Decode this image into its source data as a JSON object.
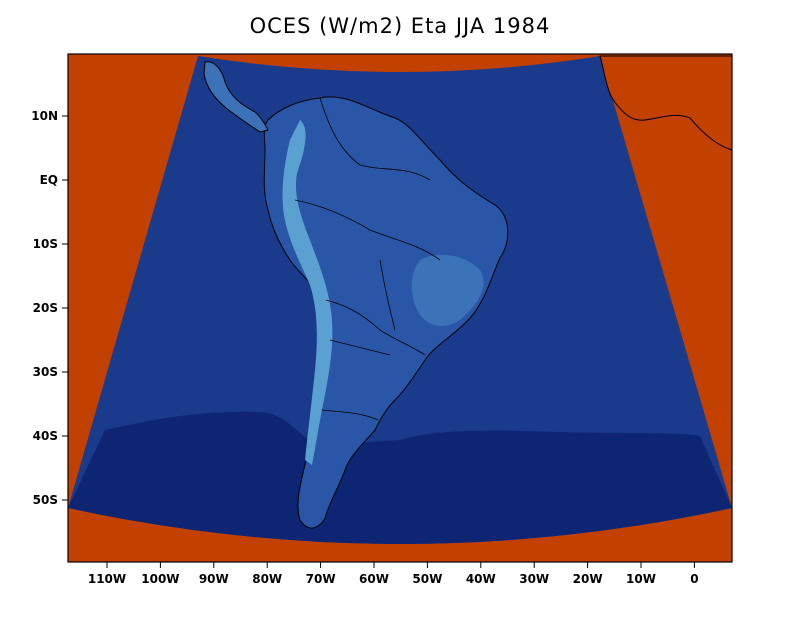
{
  "title": "OCES (W/m2) Eta JJA 1984",
  "colors": {
    "outside_domain": "#c34100",
    "ocean": "#1a3a8c",
    "ocean_south": "#0d2573",
    "land_low": "#2a56a8",
    "land_mid": "#3b72b8",
    "land_high": "#5aa0d0",
    "coast": "#000000"
  },
  "axes": {
    "y_ticks": [
      "10N",
      "EQ",
      "10S",
      "20S",
      "30S",
      "40S",
      "50S"
    ],
    "x_ticks": [
      "110W",
      "100W",
      "90W",
      "80W",
      "70W",
      "60W",
      "50W",
      "40W",
      "30W",
      "20W",
      "10W",
      "0"
    ]
  },
  "chart_data": {
    "type": "heatmap",
    "title": "OCES (W/m2) Eta JJA 1984",
    "region": "South America",
    "longitude_range": [
      "117W",
      "5E"
    ],
    "latitude_range": [
      "60S",
      "20N"
    ],
    "x_tick_labels": [
      "110W",
      "100W",
      "90W",
      "80W",
      "70W",
      "60W",
      "50W",
      "40W",
      "30W",
      "20W",
      "10W",
      "0"
    ],
    "y_tick_labels": [
      "10N",
      "EQ",
      "10S",
      "20S",
      "30S",
      "40S",
      "50S"
    ]
  }
}
